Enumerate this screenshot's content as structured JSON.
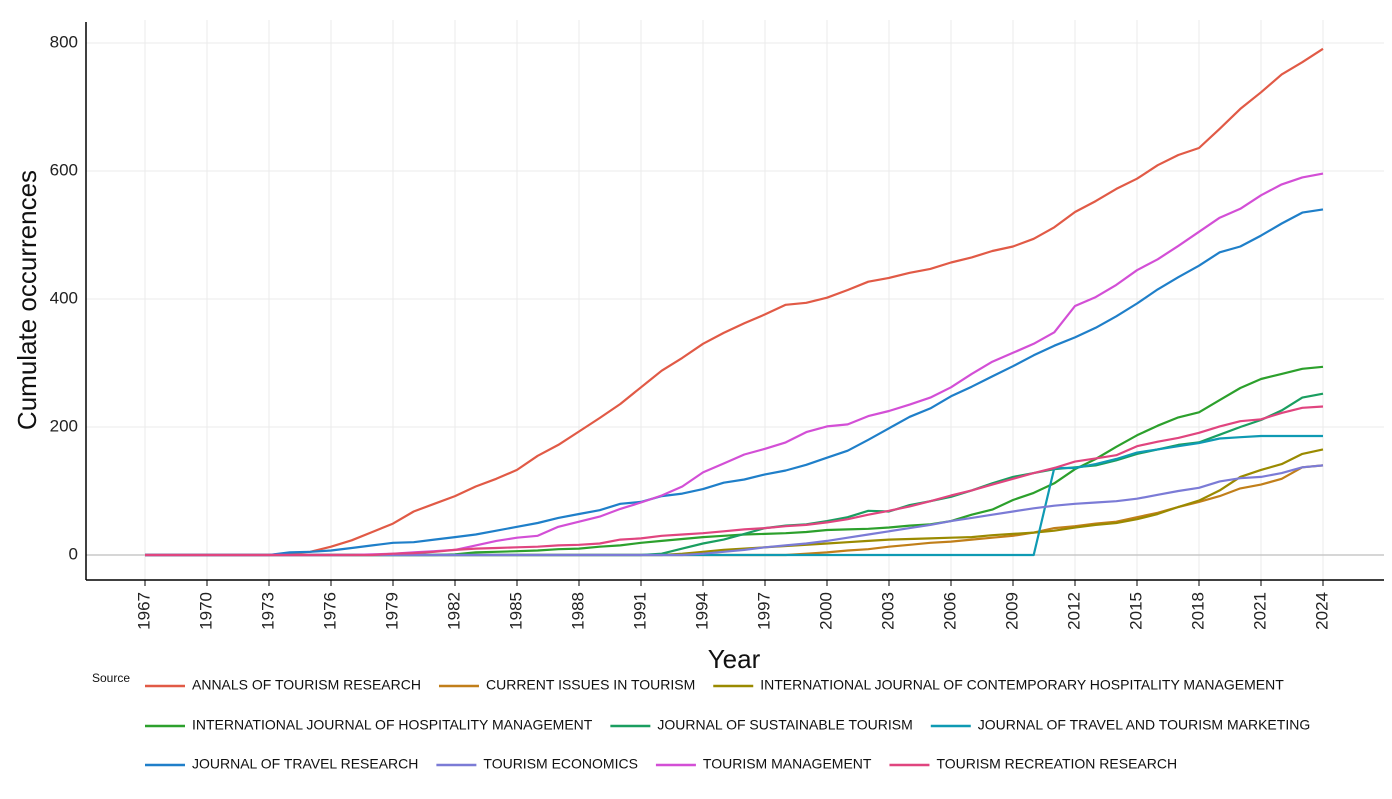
{
  "chart_data": {
    "type": "line",
    "xlabel": "Year",
    "ylabel": "Cumulate occurrences",
    "xlim": [
      1967,
      2024
    ],
    "ylim": [
      -20,
      830
    ],
    "x_ticks": [
      1967,
      1970,
      1973,
      1976,
      1979,
      1982,
      1985,
      1988,
      1991,
      1994,
      1997,
      2000,
      2003,
      2006,
      2009,
      2012,
      2015,
      2018,
      2021,
      2024
    ],
    "y_ticks": [
      0,
      200,
      400,
      600,
      800
    ],
    "grid": true,
    "legend_title": "Source",
    "legend_position": "bottom",
    "x": [
      1967,
      1968,
      1969,
      1970,
      1971,
      1972,
      1973,
      1974,
      1975,
      1976,
      1977,
      1978,
      1979,
      1980,
      1981,
      1982,
      1983,
      1984,
      1985,
      1986,
      1987,
      1988,
      1989,
      1990,
      1991,
      1992,
      1993,
      1994,
      1995,
      1996,
      1997,
      1998,
      1999,
      2000,
      2001,
      2002,
      2003,
      2004,
      2005,
      2006,
      2007,
      2008,
      2009,
      2010,
      2011,
      2012,
      2013,
      2014,
      2015,
      2016,
      2017,
      2018,
      2019,
      2020,
      2021,
      2022,
      2023,
      2024
    ],
    "series": [
      {
        "name": "ANNALS OF TOURISM RESEARCH",
        "color": "#e15a46",
        "values": [
          0,
          0,
          0,
          0,
          0,
          0,
          0,
          3,
          5,
          13,
          23,
          36,
          49,
          68,
          80,
          92,
          107,
          119,
          133,
          155,
          172,
          193,
          214,
          236,
          262,
          288,
          308,
          330,
          347,
          362,
          376,
          391,
          394,
          402,
          414,
          427,
          433,
          441,
          447,
          457,
          465,
          475,
          482,
          494,
          512,
          536,
          553,
          572,
          588,
          609,
          625,
          636,
          666,
          697,
          723,
          751,
          770,
          791
        ]
      },
      {
        "name": "CURRENT ISSUES IN TOURISM",
        "color": "#c17f1a",
        "values": [
          0,
          0,
          0,
          0,
          0,
          0,
          0,
          0,
          0,
          0,
          0,
          0,
          0,
          0,
          0,
          0,
          0,
          0,
          0,
          0,
          0,
          0,
          0,
          0,
          0,
          0,
          0,
          0,
          0,
          0,
          0,
          0,
          2,
          4,
          7,
          9,
          13,
          16,
          19,
          21,
          24,
          27,
          30,
          35,
          42,
          45,
          49,
          52,
          59,
          66,
          75,
          83,
          92,
          104,
          110,
          119,
          137,
          140
        ]
      },
      {
        "name": "INTERNATIONAL JOURNAL OF CONTEMPORARY HOSPITALITY MANAGEMENT",
        "color": "#9a8a00",
        "values": [
          0,
          0,
          0,
          0,
          0,
          0,
          0,
          0,
          0,
          0,
          0,
          0,
          0,
          0,
          0,
          0,
          0,
          0,
          0,
          0,
          0,
          0,
          0,
          0,
          0,
          0,
          2,
          5,
          8,
          10,
          12,
          14,
          16,
          18,
          20,
          22,
          24,
          25,
          26,
          27,
          28,
          31,
          33,
          35,
          38,
          43,
          47,
          50,
          56,
          64,
          75,
          85,
          101,
          122,
          133,
          142,
          158,
          165
        ]
      },
      {
        "name": "INTERNATIONAL JOURNAL OF HOSPITALITY MANAGEMENT",
        "color": "#2ca02c",
        "values": [
          0,
          0,
          0,
          0,
          0,
          0,
          0,
          0,
          0,
          0,
          0,
          0,
          0,
          0,
          0,
          1,
          4,
          5,
          6,
          7,
          9,
          10,
          13,
          15,
          19,
          22,
          25,
          28,
          30,
          32,
          33,
          34,
          36,
          39,
          40,
          41,
          43,
          46,
          48,
          53,
          63,
          71,
          86,
          97,
          112,
          134,
          150,
          169,
          187,
          202,
          215,
          223,
          242,
          261,
          275,
          283,
          291,
          294
        ]
      },
      {
        "name": "JOURNAL OF SUSTAINABLE TOURISM",
        "color": "#1a9e60",
        "values": [
          0,
          0,
          0,
          0,
          0,
          0,
          0,
          0,
          0,
          0,
          0,
          0,
          0,
          0,
          0,
          0,
          0,
          0,
          0,
          0,
          0,
          0,
          0,
          0,
          0,
          2,
          10,
          18,
          24,
          33,
          42,
          46,
          48,
          53,
          59,
          69,
          68,
          78,
          84,
          91,
          101,
          112,
          122,
          128,
          134,
          137,
          140,
          148,
          158,
          165,
          172,
          176,
          188,
          200,
          211,
          226,
          246,
          252
        ]
      },
      {
        "name": "JOURNAL OF TRAVEL AND TOURISM MARKETING",
        "color": "#0f9ab3",
        "values": [
          0,
          0,
          0,
          0,
          0,
          0,
          0,
          0,
          0,
          0,
          0,
          0,
          0,
          0,
          0,
          0,
          0,
          0,
          0,
          0,
          0,
          0,
          0,
          0,
          0,
          0,
          0,
          0,
          0,
          0,
          0,
          0,
          0,
          0,
          0,
          0,
          0,
          0,
          0,
          0,
          0,
          0,
          0,
          0,
          136,
          136,
          142,
          150,
          160,
          165,
          170,
          175,
          182,
          184,
          186,
          186,
          186,
          186
        ]
      },
      {
        "name": "JOURNAL OF TRAVEL RESEARCH",
        "color": "#1f7fc9",
        "values": [
          0,
          0,
          0,
          0,
          0,
          0,
          0,
          4,
          5,
          7,
          11,
          15,
          19,
          20,
          24,
          28,
          32,
          38,
          44,
          50,
          58,
          64,
          70,
          80,
          83,
          92,
          96,
          103,
          113,
          118,
          126,
          132,
          141,
          152,
          163,
          180,
          198,
          216,
          229,
          248,
          263,
          279,
          295,
          312,
          327,
          340,
          355,
          373,
          393,
          415,
          434,
          452,
          473,
          482,
          499,
          518,
          535,
          540
        ]
      },
      {
        "name": "TOURISM ECONOMICS",
        "color": "#7b7bd6",
        "values": [
          0,
          0,
          0,
          0,
          0,
          0,
          0,
          0,
          0,
          0,
          0,
          0,
          0,
          0,
          0,
          0,
          0,
          0,
          0,
          0,
          0,
          0,
          0,
          0,
          0,
          0,
          0,
          2,
          5,
          8,
          12,
          15,
          18,
          22,
          27,
          32,
          37,
          42,
          47,
          53,
          58,
          63,
          68,
          73,
          77,
          80,
          82,
          84,
          88,
          94,
          100,
          105,
          115,
          120,
          122,
          128,
          137,
          140
        ]
      },
      {
        "name": "TOURISM MANAGEMENT",
        "color": "#d34fd6",
        "values": [
          0,
          0,
          0,
          0,
          0,
          0,
          0,
          0,
          0,
          0,
          0,
          1,
          2,
          4,
          6,
          8,
          15,
          22,
          27,
          30,
          44,
          52,
          60,
          72,
          82,
          93,
          107,
          129,
          143,
          157,
          166,
          176,
          192,
          201,
          204,
          217,
          225,
          235,
          246,
          262,
          283,
          302,
          316,
          330,
          348,
          389,
          403,
          422,
          445,
          462,
          483,
          505,
          527,
          541,
          562,
          579,
          590,
          596
        ]
      },
      {
        "name": "TOURISM RECREATION RESEARCH",
        "color": "#e0457f",
        "values": [
          0,
          0,
          0,
          0,
          0,
          0,
          0,
          0,
          0,
          0,
          0,
          0,
          2,
          3,
          5,
          8,
          10,
          11,
          12,
          13,
          15,
          16,
          18,
          24,
          26,
          30,
          32,
          34,
          37,
          40,
          42,
          45,
          47,
          51,
          56,
          63,
          69,
          76,
          84,
          93,
          101,
          110,
          119,
          128,
          136,
          146,
          151,
          156,
          170,
          177,
          183,
          191,
          201,
          209,
          212,
          222,
          230,
          232
        ]
      }
    ]
  }
}
